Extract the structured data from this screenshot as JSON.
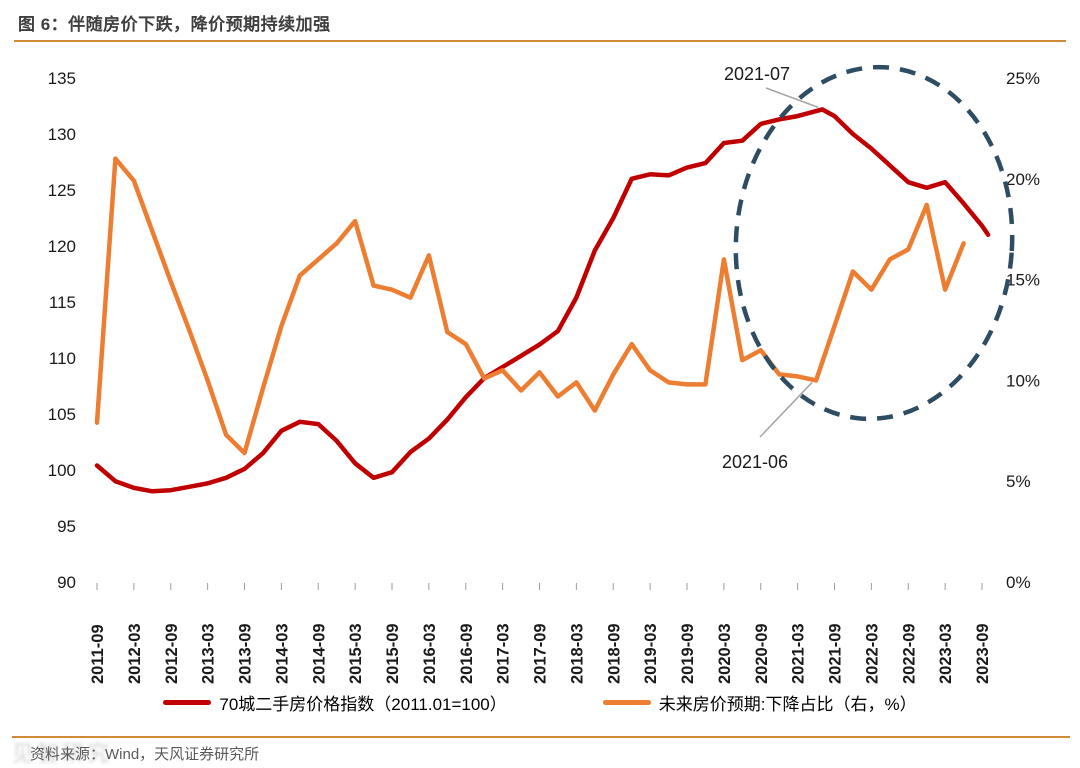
{
  "header": {
    "title": "图 6：伴随房价下跌，降价预期持续加强"
  },
  "legend": [
    {
      "label": "70城二手房价格指数（2011.01=100）",
      "color": "#C00000"
    },
    {
      "label": "未来房价预期:下降占比（右，%）",
      "color": "#ED7D31"
    }
  ],
  "footer": {
    "source_label": "资料来源：Wind，天风证券研究所",
    "watermark_text": "见智研究"
  },
  "colors": {
    "red_series": "#C00000",
    "orange_series": "#ED7D31",
    "ellipse": "#2E4D63",
    "leader_line": "#A6A6A6",
    "rule": "#D08A3C"
  },
  "chart_data": {
    "type": "line",
    "title": "图 6：伴随房价下跌，降价预期持续加强",
    "xlabel": "",
    "ylabel_left": "70城二手房价格指数",
    "ylabel_right": "未来房价预期下降占比（%）",
    "x_tick_labels": [
      "2011-09",
      "2012-03",
      "2012-09",
      "2013-03",
      "2013-09",
      "2014-03",
      "2014-09",
      "2015-03",
      "2015-09",
      "2016-03",
      "2016-09",
      "2017-03",
      "2017-09",
      "2018-03",
      "2018-09",
      "2019-03",
      "2019-09",
      "2020-03",
      "2020-09",
      "2021-03",
      "2021-09",
      "2022-03",
      "2022-09",
      "2023-03",
      "2023-09"
    ],
    "y_left": {
      "min": 90,
      "max": 135,
      "step": 5,
      "ticks": [
        "135",
        "130",
        "125",
        "120",
        "115",
        "110",
        "105",
        "100",
        "95",
        "90"
      ]
    },
    "y_right": {
      "min": 0,
      "max": 25,
      "step": 5,
      "ticks": [
        "25%",
        "20%",
        "15%",
        "10%",
        "5%",
        "0%"
      ]
    },
    "grid": false,
    "legend_position": "bottom",
    "series": [
      {
        "name": "70城二手房价格指数（2011.01=100）",
        "axis": "left",
        "color": "#C00000",
        "points": [
          [
            "2011-09",
            100.4
          ],
          [
            "2011-12",
            99.0
          ],
          [
            "2012-03",
            98.4
          ],
          [
            "2012-06",
            98.1
          ],
          [
            "2012-09",
            98.2
          ],
          [
            "2012-12",
            98.5
          ],
          [
            "2013-03",
            98.8
          ],
          [
            "2013-06",
            99.3
          ],
          [
            "2013-09",
            100.1
          ],
          [
            "2013-12",
            101.5
          ],
          [
            "2014-03",
            103.5
          ],
          [
            "2014-06",
            104.3
          ],
          [
            "2014-09",
            104.1
          ],
          [
            "2014-12",
            102.6
          ],
          [
            "2015-03",
            100.6
          ],
          [
            "2015-06",
            99.3
          ],
          [
            "2015-09",
            99.8
          ],
          [
            "2015-12",
            101.6
          ],
          [
            "2016-03",
            102.8
          ],
          [
            "2016-06",
            104.5
          ],
          [
            "2016-09",
            106.5
          ],
          [
            "2016-12",
            108.2
          ],
          [
            "2017-03",
            109.2
          ],
          [
            "2017-06",
            110.2
          ],
          [
            "2017-09",
            111.2
          ],
          [
            "2017-12",
            112.4
          ],
          [
            "2018-03",
            115.4
          ],
          [
            "2018-06",
            119.6
          ],
          [
            "2018-09",
            122.5
          ],
          [
            "2018-12",
            126.0
          ],
          [
            "2019-03",
            126.4
          ],
          [
            "2019-06",
            126.3
          ],
          [
            "2019-09",
            127.0
          ],
          [
            "2019-12",
            127.4
          ],
          [
            "2020-03",
            129.2
          ],
          [
            "2020-06",
            129.4
          ],
          [
            "2020-09",
            130.9
          ],
          [
            "2020-12",
            131.3
          ],
          [
            "2021-03",
            131.6
          ],
          [
            "2021-07",
            132.2
          ],
          [
            "2021-09",
            131.6
          ],
          [
            "2021-12",
            130.0
          ],
          [
            "2022-03",
            128.7
          ],
          [
            "2022-06",
            127.2
          ],
          [
            "2022-09",
            125.7
          ],
          [
            "2022-12",
            125.2
          ],
          [
            "2023-03",
            125.7
          ],
          [
            "2023-06",
            123.8
          ],
          [
            "2023-09",
            121.8
          ],
          [
            "2023-10",
            121.0
          ]
        ]
      },
      {
        "name": "未来房价预期:下降占比（右，%）",
        "axis": "right",
        "color": "#ED7D31",
        "points": [
          [
            "2011-09",
            7.9
          ],
          [
            "2011-12",
            21.0
          ],
          [
            "2012-03",
            19.9
          ],
          [
            "2012-06",
            17.4
          ],
          [
            "2012-09",
            14.9
          ],
          [
            "2012-12",
            12.5
          ],
          [
            "2013-03",
            10.0
          ],
          [
            "2013-06",
            7.3
          ],
          [
            "2013-09",
            6.4
          ],
          [
            "2013-12",
            9.6
          ],
          [
            "2014-03",
            12.7
          ],
          [
            "2014-06",
            15.2
          ],
          [
            "2014-09",
            16.0
          ],
          [
            "2014-12",
            16.8
          ],
          [
            "2015-03",
            17.9
          ],
          [
            "2015-06",
            14.7
          ],
          [
            "2015-09",
            14.5
          ],
          [
            "2015-12",
            14.1
          ],
          [
            "2016-03",
            16.2
          ],
          [
            "2016-06",
            12.4
          ],
          [
            "2016-09",
            11.8
          ],
          [
            "2016-12",
            10.1
          ],
          [
            "2017-03",
            10.5
          ],
          [
            "2017-06",
            9.5
          ],
          [
            "2017-09",
            10.4
          ],
          [
            "2017-12",
            9.2
          ],
          [
            "2018-03",
            9.9
          ],
          [
            "2018-06",
            8.5
          ],
          [
            "2018-09",
            10.3
          ],
          [
            "2018-12",
            11.8
          ],
          [
            "2019-03",
            10.5
          ],
          [
            "2019-06",
            9.9
          ],
          [
            "2019-09",
            9.8
          ],
          [
            "2019-12",
            9.8
          ],
          [
            "2020-03",
            16.0
          ],
          [
            "2020-06",
            11.0
          ],
          [
            "2020-09",
            11.5
          ],
          [
            "2020-12",
            10.3
          ],
          [
            "2021-03",
            10.2
          ],
          [
            "2021-06",
            10.0
          ],
          [
            "2021-09",
            12.7
          ],
          [
            "2021-12",
            15.4
          ],
          [
            "2022-03",
            14.5
          ],
          [
            "2022-06",
            16.0
          ],
          [
            "2022-09",
            16.5
          ],
          [
            "2022-12",
            18.7
          ],
          [
            "2023-03",
            14.5
          ],
          [
            "2023-06",
            16.8
          ]
        ]
      }
    ],
    "annotations": [
      {
        "text": "2021-07",
        "series": 0,
        "point": [
          "2021-07",
          132.2
        ]
      },
      {
        "text": "2021-06",
        "series": 1,
        "point": [
          "2021-06",
          10.0
        ]
      }
    ],
    "highlight_ellipse": {
      "note": "dashed ellipse circling 2020-09 to 2023-09 region",
      "color": "#2E4D63"
    }
  }
}
